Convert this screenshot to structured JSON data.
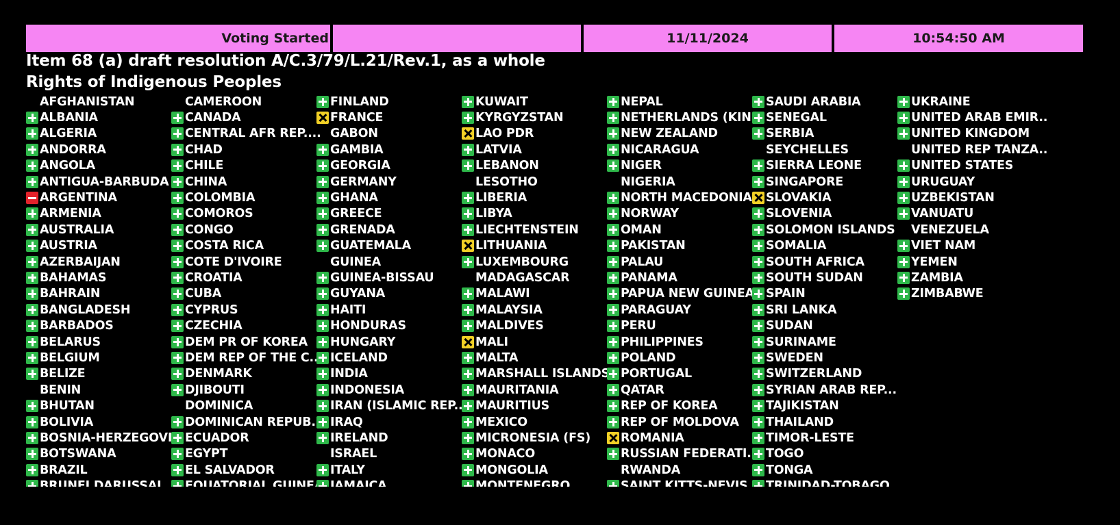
{
  "header": {
    "status": "Voting Started",
    "date": "11/11/2024",
    "time": "10:54:50 AM"
  },
  "title": {
    "item": "Item 68 (a) draft resolution A/C.3/79/L.21/Rev.1, as a whole",
    "topic": "Rights of Indigenous Peoples"
  },
  "vote_icons": {
    "yes": "green-plus-icon",
    "no": "red-minus-icon",
    "abstain": "yellow-x-icon",
    "none": "no-vote"
  },
  "colors": {
    "header_bg": "#f685f3",
    "yes": "#2eb84a",
    "no": "#e3222b",
    "abstain": "#f2d026",
    "background": "#000000"
  },
  "columns": [
    [
      {
        "name": "AFGHANISTAN",
        "vote": "none"
      },
      {
        "name": "ALBANIA",
        "vote": "yes"
      },
      {
        "name": "ALGERIA",
        "vote": "yes"
      },
      {
        "name": "ANDORRA",
        "vote": "yes"
      },
      {
        "name": "ANGOLA",
        "vote": "yes"
      },
      {
        "name": "ANTIGUA-BARBUDA",
        "vote": "yes"
      },
      {
        "name": "ARGENTINA",
        "vote": "no"
      },
      {
        "name": "ARMENIA",
        "vote": "yes"
      },
      {
        "name": "AUSTRALIA",
        "vote": "yes"
      },
      {
        "name": "AUSTRIA",
        "vote": "yes"
      },
      {
        "name": "AZERBAIJAN",
        "vote": "yes"
      },
      {
        "name": "BAHAMAS",
        "vote": "yes"
      },
      {
        "name": "BAHRAIN",
        "vote": "yes"
      },
      {
        "name": "BANGLADESH",
        "vote": "yes"
      },
      {
        "name": "BARBADOS",
        "vote": "yes"
      },
      {
        "name": "BELARUS",
        "vote": "yes"
      },
      {
        "name": "BELGIUM",
        "vote": "yes"
      },
      {
        "name": "BELIZE",
        "vote": "yes"
      },
      {
        "name": "BENIN",
        "vote": "none"
      },
      {
        "name": "BHUTAN",
        "vote": "yes"
      },
      {
        "name": "BOLIVIA",
        "vote": "yes"
      },
      {
        "name": "BOSNIA-HERZEGOVI...",
        "vote": "yes"
      },
      {
        "name": "BOTSWANA",
        "vote": "yes"
      },
      {
        "name": "BRAZIL",
        "vote": "yes"
      },
      {
        "name": "BRUNEI DARUSSAL",
        "vote": "yes"
      }
    ],
    [
      {
        "name": "CAMEROON",
        "vote": "none"
      },
      {
        "name": "CANADA",
        "vote": "yes"
      },
      {
        "name": "CENTRAL AFR REP....",
        "vote": "yes"
      },
      {
        "name": "CHAD",
        "vote": "yes"
      },
      {
        "name": "CHILE",
        "vote": "yes"
      },
      {
        "name": "CHINA",
        "vote": "yes"
      },
      {
        "name": "COLOMBIA",
        "vote": "yes"
      },
      {
        "name": "COMOROS",
        "vote": "yes"
      },
      {
        "name": "CONGO",
        "vote": "yes"
      },
      {
        "name": "COSTA RICA",
        "vote": "yes"
      },
      {
        "name": "COTE D'IVOIRE",
        "vote": "yes"
      },
      {
        "name": "CROATIA",
        "vote": "yes"
      },
      {
        "name": "CUBA",
        "vote": "yes"
      },
      {
        "name": "CYPRUS",
        "vote": "yes"
      },
      {
        "name": "CZECHIA",
        "vote": "yes"
      },
      {
        "name": "DEM PR OF KOREA",
        "vote": "yes"
      },
      {
        "name": "DEM REP OF THE C...",
        "vote": "yes"
      },
      {
        "name": "DENMARK",
        "vote": "yes"
      },
      {
        "name": "DJIBOUTI",
        "vote": "yes"
      },
      {
        "name": "DOMINICA",
        "vote": "none"
      },
      {
        "name": "DOMINICAN REPUB...",
        "vote": "yes"
      },
      {
        "name": "ECUADOR",
        "vote": "yes"
      },
      {
        "name": "EGYPT",
        "vote": "yes"
      },
      {
        "name": "EL SALVADOR",
        "vote": "yes"
      },
      {
        "name": "EQUATORIAL GUINEA",
        "vote": "yes"
      }
    ],
    [
      {
        "name": "FINLAND",
        "vote": "yes"
      },
      {
        "name": "FRANCE",
        "vote": "abstain"
      },
      {
        "name": "GABON",
        "vote": "none"
      },
      {
        "name": "GAMBIA",
        "vote": "yes"
      },
      {
        "name": "GEORGIA",
        "vote": "yes"
      },
      {
        "name": "GERMANY",
        "vote": "yes"
      },
      {
        "name": "GHANA",
        "vote": "yes"
      },
      {
        "name": "GREECE",
        "vote": "yes"
      },
      {
        "name": "GRENADA",
        "vote": "yes"
      },
      {
        "name": "GUATEMALA",
        "vote": "yes"
      },
      {
        "name": "GUINEA",
        "vote": "none"
      },
      {
        "name": "GUINEA-BISSAU",
        "vote": "yes"
      },
      {
        "name": "GUYANA",
        "vote": "yes"
      },
      {
        "name": "HAITI",
        "vote": "yes"
      },
      {
        "name": "HONDURAS",
        "vote": "yes"
      },
      {
        "name": "HUNGARY",
        "vote": "yes"
      },
      {
        "name": "ICELAND",
        "vote": "yes"
      },
      {
        "name": "INDIA",
        "vote": "yes"
      },
      {
        "name": "INDONESIA",
        "vote": "yes"
      },
      {
        "name": "IRAN (ISLAMIC REP...",
        "vote": "yes"
      },
      {
        "name": "IRAQ",
        "vote": "yes"
      },
      {
        "name": "IRELAND",
        "vote": "yes"
      },
      {
        "name": "ISRAEL",
        "vote": "none"
      },
      {
        "name": "ITALY",
        "vote": "yes"
      },
      {
        "name": "JAMAICA",
        "vote": "yes"
      }
    ],
    [
      {
        "name": "KUWAIT",
        "vote": "yes"
      },
      {
        "name": "KYRGYZSTAN",
        "vote": "yes"
      },
      {
        "name": "LAO PDR",
        "vote": "abstain"
      },
      {
        "name": "LATVIA",
        "vote": "yes"
      },
      {
        "name": "LEBANON",
        "vote": "yes"
      },
      {
        "name": "LESOTHO",
        "vote": "none"
      },
      {
        "name": "LIBERIA",
        "vote": "yes"
      },
      {
        "name": "LIBYA",
        "vote": "yes"
      },
      {
        "name": "LIECHTENSTEIN",
        "vote": "yes"
      },
      {
        "name": "LITHUANIA",
        "vote": "abstain"
      },
      {
        "name": "LUXEMBOURG",
        "vote": "yes"
      },
      {
        "name": "MADAGASCAR",
        "vote": "none"
      },
      {
        "name": "MALAWI",
        "vote": "yes"
      },
      {
        "name": "MALAYSIA",
        "vote": "yes"
      },
      {
        "name": "MALDIVES",
        "vote": "yes"
      },
      {
        "name": "MALI",
        "vote": "abstain"
      },
      {
        "name": "MALTA",
        "vote": "yes"
      },
      {
        "name": "MARSHALL ISLANDS",
        "vote": "yes"
      },
      {
        "name": "MAURITANIA",
        "vote": "yes"
      },
      {
        "name": "MAURITIUS",
        "vote": "yes"
      },
      {
        "name": "MEXICO",
        "vote": "yes"
      },
      {
        "name": "MICRONESIA (FS)",
        "vote": "yes"
      },
      {
        "name": "MONACO",
        "vote": "yes"
      },
      {
        "name": "MONGOLIA",
        "vote": "yes"
      },
      {
        "name": "MONTENEGRO",
        "vote": "yes"
      }
    ],
    [
      {
        "name": "NEPAL",
        "vote": "yes"
      },
      {
        "name": "NETHERLANDS (KIN...",
        "vote": "yes"
      },
      {
        "name": "NEW ZEALAND",
        "vote": "yes"
      },
      {
        "name": "NICARAGUA",
        "vote": "yes"
      },
      {
        "name": "NIGER",
        "vote": "yes"
      },
      {
        "name": "NIGERIA",
        "vote": "none"
      },
      {
        "name": "NORTH MACEDONIA",
        "vote": "yes"
      },
      {
        "name": "NORWAY",
        "vote": "yes"
      },
      {
        "name": "OMAN",
        "vote": "yes"
      },
      {
        "name": "PAKISTAN",
        "vote": "yes"
      },
      {
        "name": "PALAU",
        "vote": "yes"
      },
      {
        "name": "PANAMA",
        "vote": "yes"
      },
      {
        "name": "PAPUA NEW GUINEA",
        "vote": "yes"
      },
      {
        "name": "PARAGUAY",
        "vote": "yes"
      },
      {
        "name": "PERU",
        "vote": "yes"
      },
      {
        "name": "PHILIPPINES",
        "vote": "yes"
      },
      {
        "name": "POLAND",
        "vote": "yes"
      },
      {
        "name": "PORTUGAL",
        "vote": "yes"
      },
      {
        "name": "QATAR",
        "vote": "yes"
      },
      {
        "name": "REP OF KOREA",
        "vote": "yes"
      },
      {
        "name": "REP OF MOLDOVA",
        "vote": "yes"
      },
      {
        "name": "ROMANIA",
        "vote": "abstain"
      },
      {
        "name": "RUSSIAN FEDERATI...",
        "vote": "yes"
      },
      {
        "name": "RWANDA",
        "vote": "none"
      },
      {
        "name": "SAINT KITTS-NEVIS",
        "vote": "yes"
      }
    ],
    [
      {
        "name": "SAUDI ARABIA",
        "vote": "yes"
      },
      {
        "name": "SENEGAL",
        "vote": "yes"
      },
      {
        "name": "SERBIA",
        "vote": "yes"
      },
      {
        "name": "SEYCHELLES",
        "vote": "none"
      },
      {
        "name": "SIERRA LEONE",
        "vote": "yes"
      },
      {
        "name": "SINGAPORE",
        "vote": "yes"
      },
      {
        "name": "SLOVAKIA",
        "vote": "abstain"
      },
      {
        "name": "SLOVENIA",
        "vote": "yes"
      },
      {
        "name": "SOLOMON ISLANDS",
        "vote": "yes"
      },
      {
        "name": "SOMALIA",
        "vote": "yes"
      },
      {
        "name": "SOUTH AFRICA",
        "vote": "yes"
      },
      {
        "name": "SOUTH SUDAN",
        "vote": "yes"
      },
      {
        "name": "SPAIN",
        "vote": "yes"
      },
      {
        "name": "SRI LANKA",
        "vote": "yes"
      },
      {
        "name": "SUDAN",
        "vote": "yes"
      },
      {
        "name": "SURINAME",
        "vote": "yes"
      },
      {
        "name": "SWEDEN",
        "vote": "yes"
      },
      {
        "name": "SWITZERLAND",
        "vote": "yes"
      },
      {
        "name": "SYRIAN ARAB REP...",
        "vote": "yes"
      },
      {
        "name": "TAJIKISTAN",
        "vote": "yes"
      },
      {
        "name": "THAILAND",
        "vote": "yes"
      },
      {
        "name": "TIMOR-LESTE",
        "vote": "yes"
      },
      {
        "name": "TOGO",
        "vote": "yes"
      },
      {
        "name": "TONGA",
        "vote": "yes"
      },
      {
        "name": "TRINIDAD-TOBAGO",
        "vote": "yes"
      }
    ],
    [
      {
        "name": "UKRAINE",
        "vote": "yes"
      },
      {
        "name": "UNITED ARAB EMIR...",
        "vote": "yes"
      },
      {
        "name": "UNITED KINGDOM",
        "vote": "yes"
      },
      {
        "name": "UNITED REP TANZA...",
        "vote": "none"
      },
      {
        "name": "UNITED STATES",
        "vote": "yes"
      },
      {
        "name": "URUGUAY",
        "vote": "yes"
      },
      {
        "name": "UZBEKISTAN",
        "vote": "yes"
      },
      {
        "name": "VANUATU",
        "vote": "yes"
      },
      {
        "name": "VENEZUELA",
        "vote": "none"
      },
      {
        "name": "VIET NAM",
        "vote": "yes"
      },
      {
        "name": "YEMEN",
        "vote": "yes"
      },
      {
        "name": "ZAMBIA",
        "vote": "yes"
      },
      {
        "name": "ZIMBABWE",
        "vote": "yes"
      }
    ]
  ]
}
